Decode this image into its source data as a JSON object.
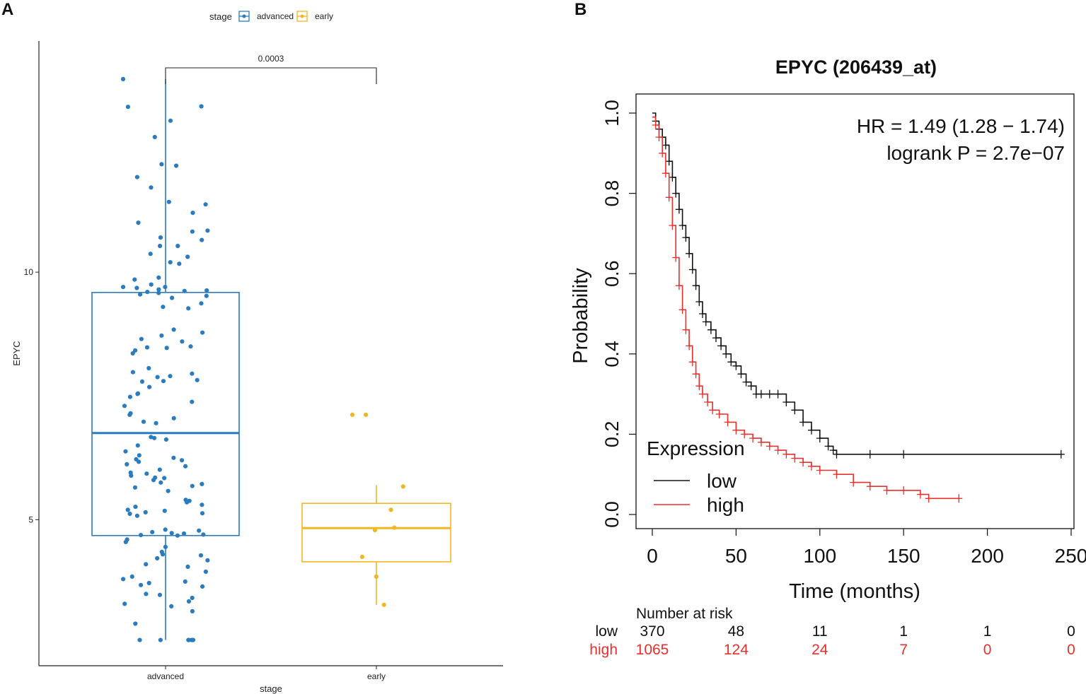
{
  "panels": {
    "a_letter": "A",
    "b_letter": "B"
  },
  "colors": {
    "advanced": "#2b7bbf",
    "early": "#f0b722",
    "low": "#111111",
    "high": "#e8302c"
  },
  "chart_data": [
    {
      "type": "box",
      "title": "",
      "xlabel": "stage",
      "ylabel": "EPYC",
      "legend_title": "stage",
      "legend_position": "top",
      "categories": [
        "advanced",
        "early"
      ],
      "yticks": [
        5,
        10
      ],
      "ylim": [
        2.05,
        14.67
      ],
      "significance": "0.0003",
      "boxes": [
        {
          "name": "advanced",
          "min": 2.57,
          "q1": 4.68,
          "median": 6.75,
          "q3": 9.59,
          "max": 13.9
        },
        {
          "name": "early",
          "min": 3.28,
          "q1": 4.15,
          "median": 4.83,
          "q3": 5.33,
          "max": 5.7
        }
      ],
      "points": {
        "advanced": [
          13.9,
          13.35,
          13.34,
          13.06,
          12.73,
          12.18,
          12.15,
          11.92,
          11.71,
          11.42,
          11.37,
          11.2,
          11.0,
          10.84,
          10.82,
          10.7,
          10.65,
          10.53,
          10.53,
          10.37,
          10.31,
          10.2,
          10.17,
          9.89,
          9.85,
          9.75,
          9.7,
          9.7,
          9.68,
          9.65,
          9.63,
          9.62,
          9.6,
          9.58,
          9.55,
          9.48,
          9.52,
          9.37,
          9.3,
          9.27,
          8.84,
          8.78,
          8.72,
          8.65,
          8.6,
          8.5,
          8.48,
          8.47,
          8.42,
          8.36,
          8.06,
          7.98,
          7.95,
          7.9,
          7.88,
          7.82,
          7.8,
          7.79,
          7.68,
          7.55,
          7.54,
          7.48,
          7.38,
          7.3,
          7.15,
          7.12,
          7.05,
          6.98,
          6.95,
          6.67,
          6.65,
          6.62,
          6.5,
          6.38,
          6.3,
          6.25,
          6.22,
          6.2,
          6.17,
          6.12,
          6.08,
          6.01,
          5.95,
          5.93,
          5.89,
          5.85,
          5.84,
          5.8,
          5.75,
          5.72,
          5.68,
          5.65,
          5.58,
          5.4,
          5.38,
          5.35,
          5.3,
          5.26,
          5.2,
          5.18,
          5.15,
          5.13,
          5.12,
          5.08,
          4.8,
          4.78,
          4.75,
          4.73,
          4.72,
          4.7,
          4.69,
          4.68,
          4.6,
          4.55,
          4.45,
          4.35,
          4.3,
          4.28,
          4.22,
          4.18,
          4.1,
          4.05,
          3.95,
          3.85,
          3.8,
          3.75,
          3.72,
          3.68,
          3.65,
          3.5,
          3.48,
          3.42,
          3.35,
          3.3,
          3.25,
          3.15,
          2.9,
          2.57,
          2.57,
          2.57,
          2.57,
          2.57,
          2.57
        ],
        "early": [
          7.12,
          7.12,
          5.67,
          5.2,
          4.84,
          4.79,
          4.25,
          3.85,
          3.28
        ]
      }
    },
    {
      "type": "line",
      "subtype": "kaplan-meier",
      "title": "EPYC (206439_at)",
      "xlabel": "Time (months)",
      "ylabel": "Probability",
      "xlim": [
        0,
        250
      ],
      "ylim": [
        0,
        1
      ],
      "xticks": [
        0,
        50,
        100,
        150,
        200,
        250
      ],
      "yticks": [
        "0.0",
        "0.2",
        "0.4",
        "0.6",
        "0.8",
        "1.0"
      ],
      "annotation": [
        "HR = 1.49 (1.28 − 1.74)",
        "logrank P = 2.7e−07"
      ],
      "legend_title": "Expression",
      "legend_position": "bottom-left",
      "series": [
        {
          "name": "low",
          "x": [
            0,
            2,
            4,
            6,
            8,
            10,
            12,
            14,
            16,
            18,
            20,
            22,
            24,
            26,
            28,
            30,
            32,
            35,
            38,
            41,
            44,
            47,
            50,
            53,
            56,
            59,
            62,
            65,
            70,
            75,
            80,
            85,
            90,
            95,
            100,
            105,
            108,
            110,
            130,
            150,
            244
          ],
          "y": [
            1.0,
            0.98,
            0.96,
            0.94,
            0.92,
            0.88,
            0.84,
            0.8,
            0.76,
            0.72,
            0.69,
            0.65,
            0.61,
            0.57,
            0.53,
            0.5,
            0.48,
            0.46,
            0.44,
            0.42,
            0.4,
            0.38,
            0.37,
            0.35,
            0.33,
            0.32,
            0.3,
            0.3,
            0.3,
            0.3,
            0.28,
            0.26,
            0.23,
            0.21,
            0.19,
            0.17,
            0.16,
            0.15,
            0.15,
            0.15,
            0.15
          ]
        },
        {
          "name": "high",
          "x": [
            0,
            2,
            4,
            6,
            8,
            10,
            12,
            14,
            16,
            18,
            20,
            22,
            24,
            26,
            28,
            30,
            33,
            36,
            40,
            45,
            50,
            55,
            60,
            65,
            70,
            75,
            80,
            85,
            90,
            95,
            100,
            110,
            120,
            130,
            140,
            150,
            160,
            165,
            183
          ],
          "y": [
            0.99,
            0.97,
            0.94,
            0.9,
            0.85,
            0.79,
            0.72,
            0.64,
            0.57,
            0.51,
            0.46,
            0.42,
            0.38,
            0.35,
            0.32,
            0.3,
            0.28,
            0.26,
            0.25,
            0.23,
            0.21,
            0.2,
            0.19,
            0.18,
            0.17,
            0.16,
            0.15,
            0.14,
            0.13,
            0.12,
            0.11,
            0.1,
            0.08,
            0.07,
            0.06,
            0.06,
            0.05,
            0.04,
            0.04
          ]
        }
      ],
      "risk_table": {
        "title": "Number at risk",
        "times": [
          0,
          50,
          100,
          150,
          200,
          250
        ],
        "rows": [
          {
            "name": "low",
            "values": [
              "370",
              "48",
              "11",
              "1",
              "1",
              "0"
            ]
          },
          {
            "name": "high",
            "values": [
              "1065",
              "124",
              "24",
              "7",
              "0",
              "0"
            ]
          }
        ]
      }
    }
  ]
}
